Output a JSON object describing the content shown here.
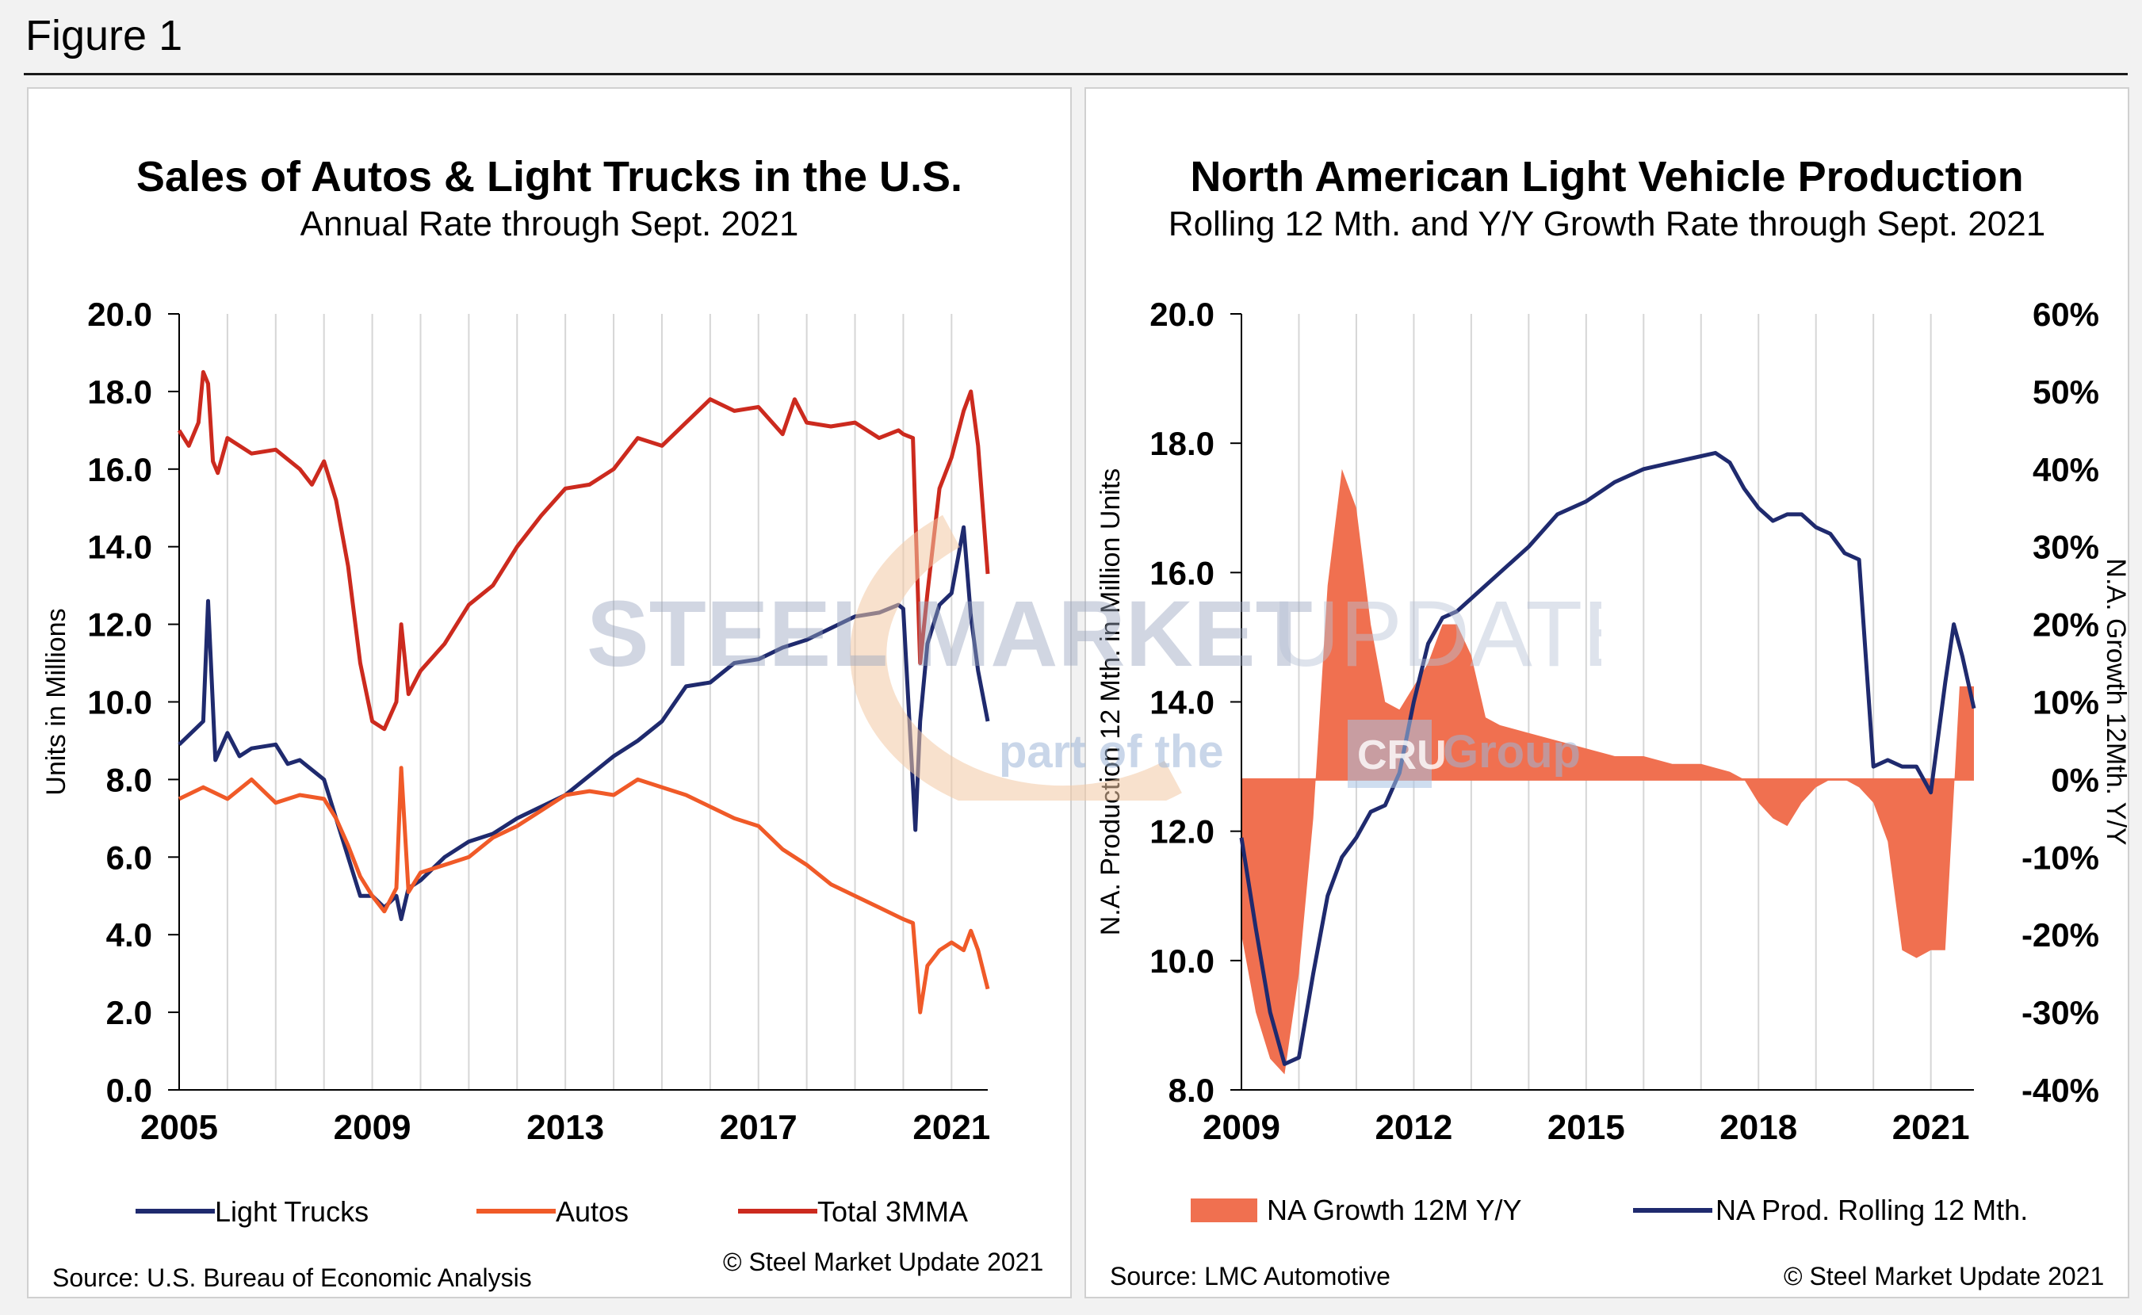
{
  "figure_label": "Figure 1",
  "watermark": {
    "line1_a": "STEEL MARKET",
    "line1_b": "UPDATE",
    "line2_a": "part of the",
    "line2_logo": "CRU",
    "line2_b": "Group"
  },
  "colors": {
    "light_trucks": "#1f2a6e",
    "autos": "#f05a28",
    "total": "#cc2a1e",
    "growth_fill": "#f07050",
    "prod_line": "#1f2a6e"
  },
  "left": {
    "title": "Sales of Autos & Light Trucks in the U.S.",
    "subtitle": "Annual Rate through Sept. 2021",
    "source": "Source: U.S. Bureau of Economic Analysis",
    "copyright": "© Steel Market Update 2021"
  },
  "right": {
    "title": "North American Light Vehicle Production",
    "subtitle": "Rolling 12 Mth. and Y/Y Growth Rate through Sept. 2021",
    "source": "Source: LMC Automotive",
    "copyright": "© Steel Market Update 2021"
  },
  "chart_data": [
    {
      "type": "line",
      "ylabel": "Units in Millions",
      "ylim": [
        0,
        20
      ],
      "yticks": [
        "0.0",
        "2.0",
        "4.0",
        "6.0",
        "8.0",
        "10.0",
        "12.0",
        "14.0",
        "16.0",
        "18.0",
        "20.0"
      ],
      "xlim": [
        2005,
        2021.75
      ],
      "xticks": [
        "2005",
        "2009",
        "2013",
        "2017",
        "2021"
      ],
      "grid": "vertical",
      "legend": "bottom",
      "series": [
        {
          "name": "Light Trucks",
          "color": "#1f2a6e",
          "x": [
            2005.0,
            2005.25,
            2005.5,
            2005.6,
            2005.75,
            2006.0,
            2006.25,
            2006.5,
            2007.0,
            2007.25,
            2007.5,
            2008.0,
            2008.25,
            2008.5,
            2008.75,
            2009.0,
            2009.25,
            2009.5,
            2009.6,
            2009.75,
            2010.0,
            2010.5,
            2011.0,
            2011.5,
            2012.0,
            2012.5,
            2013.0,
            2013.5,
            2014.0,
            2014.5,
            2015.0,
            2015.5,
            2016.0,
            2016.5,
            2017.0,
            2017.5,
            2018.0,
            2018.5,
            2019.0,
            2019.5,
            2019.9,
            2020.0,
            2020.25,
            2020.35,
            2020.5,
            2020.75,
            2021.0,
            2021.25,
            2021.4,
            2021.55,
            2021.75
          ],
          "y": [
            8.9,
            9.2,
            9.5,
            12.6,
            8.5,
            9.2,
            8.6,
            8.8,
            8.9,
            8.4,
            8.5,
            8.0,
            7.0,
            6.0,
            5.0,
            5.0,
            4.7,
            5.0,
            4.4,
            5.2,
            5.4,
            6.0,
            6.4,
            6.6,
            7.0,
            7.3,
            7.6,
            8.1,
            8.6,
            9.0,
            9.5,
            10.4,
            10.5,
            11.0,
            11.1,
            11.4,
            11.6,
            11.9,
            12.2,
            12.3,
            12.5,
            12.4,
            6.7,
            9.5,
            11.5,
            12.5,
            12.8,
            14.5,
            12.2,
            10.8,
            9.5
          ]
        },
        {
          "name": "Autos",
          "color": "#f05a28",
          "x": [
            2005.0,
            2005.5,
            2006.0,
            2006.5,
            2007.0,
            2007.5,
            2008.0,
            2008.25,
            2008.5,
            2008.75,
            2009.0,
            2009.25,
            2009.5,
            2009.6,
            2009.75,
            2010.0,
            2010.5,
            2011.0,
            2011.5,
            2012.0,
            2012.5,
            2013.0,
            2013.5,
            2014.0,
            2014.5,
            2015.0,
            2015.5,
            2016.0,
            2016.5,
            2017.0,
            2017.5,
            2018.0,
            2018.5,
            2019.0,
            2019.5,
            2020.0,
            2020.2,
            2020.35,
            2020.5,
            2020.75,
            2021.0,
            2021.25,
            2021.4,
            2021.55,
            2021.75
          ],
          "y": [
            7.5,
            7.8,
            7.5,
            8.0,
            7.4,
            7.6,
            7.5,
            7.0,
            6.3,
            5.5,
            5.0,
            4.6,
            5.2,
            8.3,
            5.1,
            5.6,
            5.8,
            6.0,
            6.5,
            6.8,
            7.2,
            7.6,
            7.7,
            7.6,
            8.0,
            7.8,
            7.6,
            7.3,
            7.0,
            6.8,
            6.2,
            5.8,
            5.3,
            5.0,
            4.7,
            4.4,
            4.3,
            2.0,
            3.2,
            3.6,
            3.8,
            3.6,
            4.1,
            3.6,
            2.6
          ]
        },
        {
          "name": "Total 3MMA",
          "color": "#cc2a1e",
          "x": [
            2005.0,
            2005.2,
            2005.4,
            2005.5,
            2005.6,
            2005.7,
            2005.8,
            2006.0,
            2006.5,
            2007.0,
            2007.5,
            2007.75,
            2008.0,
            2008.25,
            2008.5,
            2008.75,
            2009.0,
            2009.25,
            2009.5,
            2009.6,
            2009.75,
            2010.0,
            2010.5,
            2011.0,
            2011.5,
            2012.0,
            2012.5,
            2013.0,
            2013.5,
            2014.0,
            2014.5,
            2015.0,
            2015.5,
            2016.0,
            2016.5,
            2017.0,
            2017.5,
            2017.75,
            2018.0,
            2018.5,
            2019.0,
            2019.5,
            2019.9,
            2020.0,
            2020.2,
            2020.35,
            2020.5,
            2020.75,
            2021.0,
            2021.25,
            2021.4,
            2021.55,
            2021.75
          ],
          "y": [
            17.0,
            16.6,
            17.2,
            18.5,
            18.2,
            16.2,
            15.9,
            16.8,
            16.4,
            16.5,
            16.0,
            15.6,
            16.2,
            15.2,
            13.5,
            11.0,
            9.5,
            9.3,
            10.0,
            12.0,
            10.2,
            10.8,
            11.5,
            12.5,
            13.0,
            14.0,
            14.8,
            15.5,
            15.6,
            16.0,
            16.8,
            16.6,
            17.2,
            17.8,
            17.5,
            17.6,
            16.9,
            17.8,
            17.2,
            17.1,
            17.2,
            16.8,
            17.0,
            16.9,
            16.8,
            11.0,
            12.8,
            15.5,
            16.3,
            17.5,
            18.0,
            16.6,
            13.3
          ]
        }
      ]
    },
    {
      "type": "area",
      "ylabel": "N.A. Production 12 Mth. in Million Units",
      "y2label": "N.A. Growth 12Mth. Y/Y",
      "ylim": [
        8,
        20
      ],
      "yticks": [
        "8.0",
        "10.0",
        "12.0",
        "14.0",
        "16.0",
        "18.0",
        "20.0"
      ],
      "y2lim": [
        -40,
        60
      ],
      "y2ticks": [
        "-40%",
        "-30%",
        "-20%",
        "-10%",
        "0%",
        "10%",
        "20%",
        "30%",
        "40%",
        "50%",
        "60%"
      ],
      "xlim": [
        2009,
        2021.75
      ],
      "xticks": [
        "2009",
        "2012",
        "2015",
        "2018",
        "2021"
      ],
      "grid": "vertical",
      "legend": "bottom",
      "series": [
        {
          "name": "NA Growth 12M Y/Y",
          "kind": "area",
          "axis": "y2",
          "color": "#f07050",
          "x": [
            2009.0,
            2009.25,
            2009.5,
            2009.75,
            2010.0,
            2010.25,
            2010.5,
            2010.75,
            2011.0,
            2011.25,
            2011.5,
            2011.75,
            2012.0,
            2012.25,
            2012.5,
            2012.75,
            2013.0,
            2013.25,
            2013.5,
            2014.0,
            2014.5,
            2015.0,
            2015.5,
            2016.0,
            2016.5,
            2017.0,
            2017.5,
            2017.75,
            2018.0,
            2018.25,
            2018.5,
            2018.75,
            2019.0,
            2019.25,
            2019.5,
            2019.75,
            2020.0,
            2020.25,
            2020.5,
            2020.75,
            2021.0,
            2021.25,
            2021.5,
            2021.75
          ],
          "y": [
            -20,
            -30,
            -36,
            -38,
            -25,
            -5,
            25,
            40,
            35,
            20,
            10,
            9,
            12,
            15,
            20,
            20,
            16,
            8,
            7,
            6,
            5,
            4,
            3,
            3,
            2,
            2,
            1,
            0,
            -3,
            -5,
            -6,
            -3,
            -1,
            0,
            0,
            -1,
            -3,
            -8,
            -22,
            -23,
            -22,
            -22,
            12,
            12
          ]
        },
        {
          "name": "NA Prod. Rolling 12 Mth.",
          "kind": "line",
          "axis": "y",
          "color": "#1f2a6e",
          "x": [
            2009.0,
            2009.25,
            2009.5,
            2009.75,
            2010.0,
            2010.25,
            2010.5,
            2010.75,
            2011.0,
            2011.25,
            2011.5,
            2011.75,
            2012.0,
            2012.25,
            2012.5,
            2012.75,
            2013.0,
            2013.5,
            2014.0,
            2014.5,
            2015.0,
            2015.5,
            2016.0,
            2016.5,
            2017.0,
            2017.25,
            2017.5,
            2017.75,
            2018.0,
            2018.25,
            2018.5,
            2018.75,
            2019.0,
            2019.25,
            2019.5,
            2019.75,
            2020.0,
            2020.25,
            2020.5,
            2020.75,
            2021.0,
            2021.25,
            2021.4,
            2021.55,
            2021.75
          ],
          "y": [
            11.9,
            10.5,
            9.2,
            8.4,
            8.5,
            9.8,
            11.0,
            11.6,
            11.9,
            12.3,
            12.4,
            12.9,
            14.0,
            14.9,
            15.3,
            15.4,
            15.6,
            16.0,
            16.4,
            16.9,
            17.1,
            17.4,
            17.6,
            17.7,
            17.8,
            17.85,
            17.7,
            17.3,
            17.0,
            16.8,
            16.9,
            16.9,
            16.7,
            16.6,
            16.3,
            16.2,
            13.0,
            13.1,
            13.0,
            13.0,
            12.6,
            14.3,
            15.2,
            14.7,
            13.9
          ]
        }
      ]
    }
  ]
}
